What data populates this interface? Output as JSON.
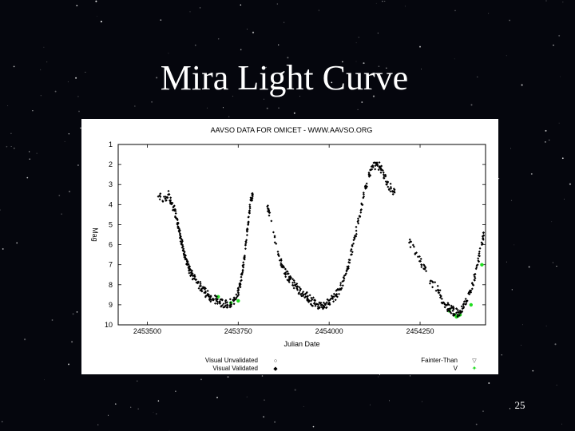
{
  "slide": {
    "title": "Mira Light Curve",
    "page_number": "25"
  },
  "colors": {
    "background": "#05060d",
    "validated": "#000000",
    "v_band": "#22dd22"
  },
  "chart_data": {
    "type": "scatter",
    "title": "AAVSO DATA FOR OMICET - WWW.AAVSO.ORG",
    "xlabel": "Julian Date",
    "ylabel": "Mag",
    "xlim": [
      2453420,
      2454430
    ],
    "ylim": [
      10,
      1
    ],
    "y_inverted": true,
    "x_ticks": [
      2453500,
      2453750,
      2454000,
      2454250
    ],
    "x_tick_labels": [
      "2453500",
      "2453750",
      "2454000",
      "2454250"
    ],
    "y_ticks": [
      1,
      2,
      3,
      4,
      5,
      6,
      7,
      8,
      9,
      10
    ],
    "grid": false,
    "legend": [
      {
        "label": "Visual Unvalidated",
        "symbol": "○",
        "position": "bottom-left"
      },
      {
        "label": "Visual Validated",
        "symbol": "◆",
        "position": "bottom-left"
      },
      {
        "label": "Fainter-Than",
        "symbol": "▽",
        "position": "bottom-right"
      },
      {
        "label": "V",
        "symbol": "✦",
        "position": "bottom-right"
      }
    ],
    "series": [
      {
        "name": "Visual Validated",
        "points": [
          [
            2453530,
            3.6
          ],
          [
            2453550,
            3.7
          ],
          [
            2453560,
            3.5
          ],
          [
            2453565,
            3.9
          ],
          [
            2453575,
            4.3
          ],
          [
            2453580,
            4.7
          ],
          [
            2453585,
            5.1
          ],
          [
            2453590,
            5.5
          ],
          [
            2453595,
            5.9
          ],
          [
            2453600,
            6.3
          ],
          [
            2453605,
            6.7
          ],
          [
            2453610,
            7.0
          ],
          [
            2453615,
            7.2
          ],
          [
            2453620,
            7.4
          ],
          [
            2453630,
            7.7
          ],
          [
            2453640,
            7.9
          ],
          [
            2453650,
            8.2
          ],
          [
            2453660,
            8.4
          ],
          [
            2453670,
            8.6
          ],
          [
            2453680,
            8.7
          ],
          [
            2453690,
            8.8
          ],
          [
            2453700,
            8.9
          ],
          [
            2453710,
            8.95
          ],
          [
            2453720,
            9.0
          ],
          [
            2453730,
            8.9
          ],
          [
            2453740,
            8.7
          ],
          [
            2453750,
            8.4
          ],
          [
            2453755,
            8.0
          ],
          [
            2453760,
            7.5
          ],
          [
            2453765,
            7.0
          ],
          [
            2453770,
            6.2
          ],
          [
            2453775,
            5.2
          ],
          [
            2453780,
            4.4
          ],
          [
            2453785,
            3.8
          ],
          [
            2453790,
            3.5
          ],
          [
            2453830,
            4.1
          ],
          [
            2453835,
            4.4
          ],
          [
            2453860,
            6.5
          ],
          [
            2453870,
            7.0
          ],
          [
            2453880,
            7.4
          ],
          [
            2453890,
            7.7
          ],
          [
            2453900,
            7.9
          ],
          [
            2453910,
            8.1
          ],
          [
            2453920,
            8.3
          ],
          [
            2453930,
            8.5
          ],
          [
            2453940,
            8.6
          ],
          [
            2453950,
            8.8
          ],
          [
            2453960,
            8.9
          ],
          [
            2453970,
            9.0
          ],
          [
            2453980,
            9.0
          ],
          [
            2453990,
            9.0
          ],
          [
            2454000,
            8.9
          ],
          [
            2454010,
            8.7
          ],
          [
            2454020,
            8.5
          ],
          [
            2454030,
            8.2
          ],
          [
            2454040,
            7.8
          ],
          [
            2454050,
            7.2
          ],
          [
            2454060,
            6.5
          ],
          [
            2454070,
            5.7
          ],
          [
            2454080,
            4.8
          ],
          [
            2454090,
            4.0
          ],
          [
            2454100,
            3.2
          ],
          [
            2454110,
            2.6
          ],
          [
            2454120,
            2.1
          ],
          [
            2454130,
            2.0
          ],
          [
            2454140,
            2.1
          ],
          [
            2454150,
            2.5
          ],
          [
            2454160,
            2.9
          ],
          [
            2454170,
            3.2
          ],
          [
            2454180,
            3.4
          ],
          [
            2454220,
            5.9
          ],
          [
            2454240,
            6.4
          ],
          [
            2454260,
            7.2
          ],
          [
            2454280,
            7.8
          ],
          [
            2454300,
            8.3
          ],
          [
            2454310,
            8.7
          ],
          [
            2454320,
            9.0
          ],
          [
            2454330,
            9.2
          ],
          [
            2454340,
            9.3
          ],
          [
            2454350,
            9.4
          ],
          [
            2454360,
            9.3
          ],
          [
            2454370,
            9.1
          ],
          [
            2454380,
            8.8
          ],
          [
            2454390,
            8.3
          ],
          [
            2454400,
            7.6
          ],
          [
            2454410,
            6.8
          ],
          [
            2454420,
            6.0
          ],
          [
            2454425,
            5.4
          ]
        ]
      },
      {
        "name": "V",
        "points": [
          [
            2453695,
            8.6
          ],
          [
            2453730,
            8.9
          ],
          [
            2453750,
            8.8
          ],
          [
            2454330,
            9.3
          ],
          [
            2454345,
            9.5
          ],
          [
            2454350,
            9.6
          ],
          [
            2454355,
            9.55
          ],
          [
            2454360,
            9.5
          ],
          [
            2454390,
            9.0
          ],
          [
            2454420,
            7.0
          ]
        ]
      }
    ]
  }
}
